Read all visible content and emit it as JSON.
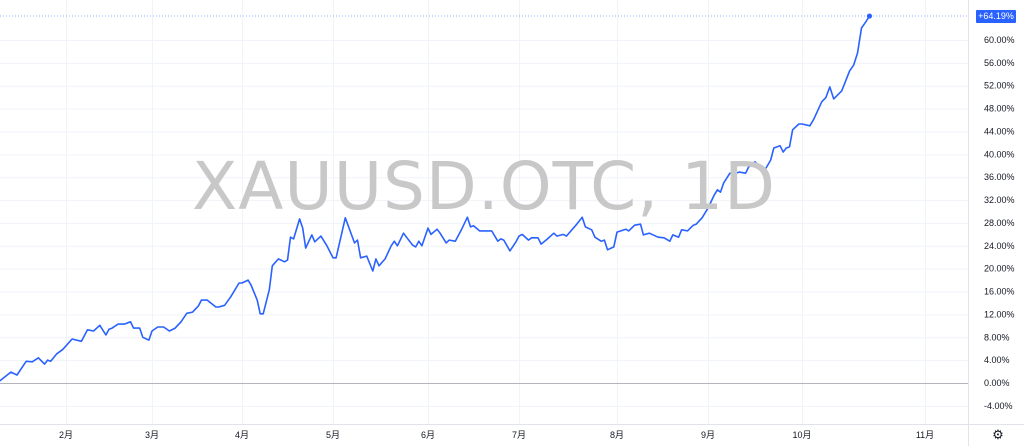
{
  "watermark": "XAUUSD.OTC, 1D",
  "settings_icon": "gear-icon",
  "colors": {
    "line": "#2962ff",
    "grid": "#f0f3fa",
    "zero_line": "#b2b5be",
    "label_bg": "#2962ff"
  },
  "chart_data": {
    "type": "line",
    "title": "",
    "xlabel": "",
    "ylabel": "",
    "x_tick_labels": [
      "2月",
      "3月",
      "4月",
      "5月",
      "6月",
      "7月",
      "8月",
      "9月",
      "10月",
      "11月"
    ],
    "y_tick_labels": [
      "-4.00%",
      "0.00%",
      "4.00%",
      "8.00%",
      "12.00%",
      "16.00%",
      "20.00%",
      "24.00%",
      "28.00%",
      "32.00%",
      "36.00%",
      "40.00%",
      "44.00%",
      "48.00%",
      "52.00%",
      "56.00%",
      "60.00%"
    ],
    "ylim": [
      -6,
      67
    ],
    "grid": true,
    "last_value_label": "+64.19%",
    "series": [
      {
        "points": [
          [
            "01-10",
            0.2
          ],
          [
            "01-14",
            1.9
          ],
          [
            "01-16",
            1.4
          ],
          [
            "01-19",
            3.8
          ],
          [
            "01-21",
            3.7
          ],
          [
            "01-23",
            4.4
          ],
          [
            "01-25",
            3.3
          ],
          [
            "01-26",
            4.0
          ],
          [
            "01-27",
            3.8
          ],
          [
            "01-29",
            5.1
          ],
          [
            "01-31",
            5.9
          ],
          [
            "02-03",
            7.7
          ],
          [
            "02-06",
            7.3
          ],
          [
            "02-08",
            9.3
          ],
          [
            "02-10",
            9.1
          ],
          [
            "02-12",
            10.1
          ],
          [
            "02-14",
            8.4
          ],
          [
            "02-15",
            9.4
          ],
          [
            "02-16",
            9.6
          ],
          [
            "02-18",
            10.3
          ],
          [
            "02-20",
            10.3
          ],
          [
            "02-22",
            10.7
          ],
          [
            "02-23",
            9.6
          ],
          [
            "02-25",
            9.6
          ],
          [
            "02-26",
            8.0
          ],
          [
            "02-28",
            7.5
          ],
          [
            "03-01",
            9.1
          ],
          [
            "03-03",
            9.8
          ],
          [
            "03-05",
            9.8
          ],
          [
            "03-07",
            9.1
          ],
          [
            "03-09",
            9.6
          ],
          [
            "03-11",
            10.7
          ],
          [
            "03-13",
            12.2
          ],
          [
            "03-15",
            12.4
          ],
          [
            "03-17",
            13.5
          ],
          [
            "03-18",
            14.5
          ],
          [
            "03-20",
            14.5
          ],
          [
            "03-23",
            13.3
          ],
          [
            "03-24",
            13.3
          ],
          [
            "03-26",
            13.6
          ],
          [
            "03-28",
            15.0
          ],
          [
            "03-31",
            17.5
          ],
          [
            "04-01",
            17.5
          ],
          [
            "04-03",
            18.0
          ],
          [
            "04-04",
            17.1
          ],
          [
            "04-06",
            14.5
          ],
          [
            "04-07",
            12.1
          ],
          [
            "04-08",
            12.1
          ],
          [
            "04-10",
            16.3
          ],
          [
            "04-11",
            20.5
          ],
          [
            "04-13",
            21.7
          ],
          [
            "04-15",
            21.2
          ],
          [
            "04-16",
            21.5
          ],
          [
            "04-17",
            25.5
          ],
          [
            "04-18",
            25.2
          ],
          [
            "04-20",
            28.7
          ],
          [
            "04-21",
            27.1
          ],
          [
            "04-22",
            23.6
          ],
          [
            "04-24",
            25.9
          ],
          [
            "04-25",
            24.7
          ],
          [
            "04-27",
            25.7
          ],
          [
            "04-29",
            24.0
          ],
          [
            "05-01",
            21.9
          ],
          [
            "05-02",
            21.9
          ],
          [
            "05-05",
            28.9
          ],
          [
            "05-08",
            24.5
          ],
          [
            "05-09",
            25.0
          ],
          [
            "05-10",
            21.9
          ],
          [
            "05-12",
            22.2
          ],
          [
            "05-14",
            19.6
          ],
          [
            "05-15",
            21.7
          ],
          [
            "05-16",
            20.5
          ],
          [
            "05-18",
            21.7
          ],
          [
            "05-20",
            24.0
          ],
          [
            "05-21",
            24.8
          ],
          [
            "05-22",
            24.0
          ],
          [
            "05-24",
            26.2
          ],
          [
            "05-25",
            25.5
          ],
          [
            "05-27",
            24.1
          ],
          [
            "05-28",
            23.8
          ],
          [
            "05-29",
            24.8
          ],
          [
            "05-30",
            24.0
          ],
          [
            "06-01",
            27.1
          ],
          [
            "06-02",
            26.0
          ],
          [
            "06-04",
            26.9
          ],
          [
            "06-05",
            26.2
          ],
          [
            "06-07",
            24.5
          ],
          [
            "06-08",
            25.0
          ],
          [
            "06-10",
            24.8
          ],
          [
            "06-12",
            26.8
          ],
          [
            "06-14",
            29.0
          ],
          [
            "06-15",
            27.3
          ],
          [
            "06-16",
            27.5
          ],
          [
            "06-18",
            26.6
          ],
          [
            "06-22",
            26.6
          ],
          [
            "06-24",
            24.8
          ],
          [
            "06-25",
            25.2
          ],
          [
            "06-26",
            25.0
          ],
          [
            "06-28",
            23.1
          ],
          [
            "06-30",
            24.7
          ],
          [
            "07-01",
            25.7
          ],
          [
            "07-02",
            26.0
          ],
          [
            "07-04",
            25.0
          ],
          [
            "07-05",
            25.4
          ],
          [
            "07-07",
            25.4
          ],
          [
            "07-08",
            24.3
          ],
          [
            "07-10",
            25.2
          ],
          [
            "07-12",
            26.2
          ],
          [
            "07-13",
            25.7
          ],
          [
            "07-15",
            26.0
          ],
          [
            "07-16",
            25.7
          ],
          [
            "07-19",
            27.6
          ],
          [
            "07-21",
            29.0
          ],
          [
            "07-22",
            27.3
          ],
          [
            "07-24",
            26.8
          ],
          [
            "07-25",
            25.5
          ],
          [
            "07-27",
            24.8
          ],
          [
            "07-28",
            25.0
          ],
          [
            "07-29",
            23.3
          ],
          [
            "07-31",
            23.8
          ],
          [
            "08-01",
            26.4
          ],
          [
            "08-04",
            26.9
          ],
          [
            "08-05",
            26.6
          ],
          [
            "08-07",
            27.6
          ],
          [
            "08-09",
            27.8
          ],
          [
            "08-10",
            25.9
          ],
          [
            "08-12",
            26.2
          ],
          [
            "08-15",
            25.5
          ],
          [
            "08-17",
            25.4
          ],
          [
            "08-19",
            24.8
          ],
          [
            "08-20",
            25.9
          ],
          [
            "08-22",
            25.5
          ],
          [
            "08-23",
            26.8
          ],
          [
            "08-25",
            26.6
          ],
          [
            "08-27",
            27.6
          ],
          [
            "08-28",
            27.8
          ],
          [
            "08-30",
            28.9
          ],
          [
            "09-01",
            30.6
          ],
          [
            "09-03",
            32.9
          ],
          [
            "09-04",
            33.8
          ],
          [
            "09-05",
            33.4
          ],
          [
            "09-06",
            35.0
          ],
          [
            "09-08",
            36.7
          ],
          [
            "09-09",
            36.6
          ],
          [
            "09-11",
            36.9
          ],
          [
            "09-13",
            36.7
          ],
          [
            "09-14",
            37.8
          ],
          [
            "09-16",
            38.7
          ],
          [
            "09-18",
            37.6
          ],
          [
            "09-19",
            37.1
          ],
          [
            "09-21",
            39.0
          ],
          [
            "09-22",
            41.1
          ],
          [
            "09-24",
            41.5
          ],
          [
            "09-25",
            40.4
          ],
          [
            "09-26",
            41.1
          ],
          [
            "09-27",
            41.3
          ],
          [
            "09-28",
            44.3
          ],
          [
            "09-30",
            45.3
          ],
          [
            "10-01",
            45.3
          ],
          [
            "10-03",
            45.0
          ],
          [
            "10-04",
            46.2
          ],
          [
            "10-06",
            49.2
          ],
          [
            "10-07",
            49.9
          ],
          [
            "10-08",
            51.8
          ],
          [
            "10-09",
            49.7
          ],
          [
            "10-11",
            51.1
          ],
          [
            "10-13",
            54.6
          ],
          [
            "10-14",
            55.6
          ],
          [
            "10-15",
            57.7
          ],
          [
            "10-16",
            62.1
          ],
          [
            "10-17",
            63.1
          ],
          [
            "10-18",
            64.19
          ]
        ]
      }
    ]
  }
}
